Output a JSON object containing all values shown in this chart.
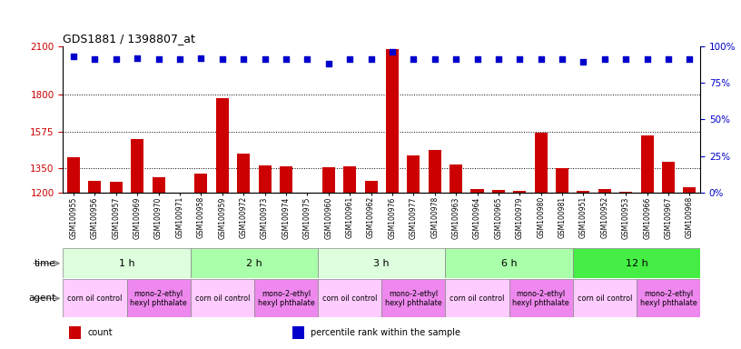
{
  "title": "GDS1881 / 1398807_at",
  "samples": [
    "GSM100955",
    "GSM100956",
    "GSM100957",
    "GSM100969",
    "GSM100970",
    "GSM100971",
    "GSM100958",
    "GSM100959",
    "GSM100972",
    "GSM100973",
    "GSM100974",
    "GSM100975",
    "GSM100960",
    "GSM100961",
    "GSM100962",
    "GSM100976",
    "GSM100977",
    "GSM100978",
    "GSM100963",
    "GSM100964",
    "GSM100965",
    "GSM100979",
    "GSM100980",
    "GSM100981",
    "GSM100951",
    "GSM100952",
    "GSM100953",
    "GSM100966",
    "GSM100967",
    "GSM100968"
  ],
  "counts": [
    1420,
    1270,
    1265,
    1530,
    1295,
    1200,
    1315,
    1780,
    1440,
    1370,
    1360,
    1200,
    1355,
    1360,
    1270,
    2080,
    1430,
    1460,
    1375,
    1220,
    1215,
    1210,
    1570,
    1350,
    1210,
    1220,
    1205,
    1550,
    1390,
    1235
  ],
  "percentiles": [
    93,
    91,
    91,
    92,
    91,
    91,
    92,
    91,
    91,
    91,
    91,
    91,
    88,
    91,
    91,
    96,
    91,
    91,
    91,
    91,
    91,
    91,
    91,
    91,
    89,
    91,
    91,
    91,
    91,
    91
  ],
  "ylim_left": [
    1200,
    2100
  ],
  "ylim_right": [
    0,
    100
  ],
  "yticks_left": [
    1200,
    1350,
    1575,
    1800,
    2100
  ],
  "yticks_right": [
    0,
    25,
    50,
    75,
    100
  ],
  "bar_color": "#cc0000",
  "dot_color": "#0000cc",
  "bg_color": "#ffffff",
  "time_groups": [
    {
      "label": "1 h",
      "start": 0,
      "end": 6,
      "color": "#ddffdd"
    },
    {
      "label": "2 h",
      "start": 6,
      "end": 12,
      "color": "#aaffaa"
    },
    {
      "label": "3 h",
      "start": 12,
      "end": 18,
      "color": "#ddffdd"
    },
    {
      "label": "6 h",
      "start": 18,
      "end": 24,
      "color": "#aaffaa"
    },
    {
      "label": "12 h",
      "start": 24,
      "end": 30,
      "color": "#44ee44"
    }
  ],
  "agent_groups": [
    {
      "label": "corn oil control",
      "start": 0,
      "end": 3,
      "color": "#ffccff"
    },
    {
      "label": "mono-2-ethyl\nhexyl phthalate",
      "start": 3,
      "end": 6,
      "color": "#ee88ee"
    },
    {
      "label": "corn oil control",
      "start": 6,
      "end": 9,
      "color": "#ffccff"
    },
    {
      "label": "mono-2-ethyl\nhexyl phthalate",
      "start": 9,
      "end": 12,
      "color": "#ee88ee"
    },
    {
      "label": "corn oil control",
      "start": 12,
      "end": 15,
      "color": "#ffccff"
    },
    {
      "label": "mono-2-ethyl\nhexyl phthalate",
      "start": 15,
      "end": 18,
      "color": "#ee88ee"
    },
    {
      "label": "corn oil control",
      "start": 18,
      "end": 21,
      "color": "#ffccff"
    },
    {
      "label": "mono-2-ethyl\nhexyl phthalate",
      "start": 21,
      "end": 24,
      "color": "#ee88ee"
    },
    {
      "label": "corn oil control",
      "start": 24,
      "end": 27,
      "color": "#ffccff"
    },
    {
      "label": "mono-2-ethyl\nhexyl phthalate",
      "start": 27,
      "end": 30,
      "color": "#ee88ee"
    }
  ],
  "legend_items": [
    {
      "label": "count",
      "color": "#cc0000"
    },
    {
      "label": "percentile rank within the sample",
      "color": "#0000cc"
    }
  ],
  "gridline_values": [
    1350,
    1575,
    1800
  ]
}
